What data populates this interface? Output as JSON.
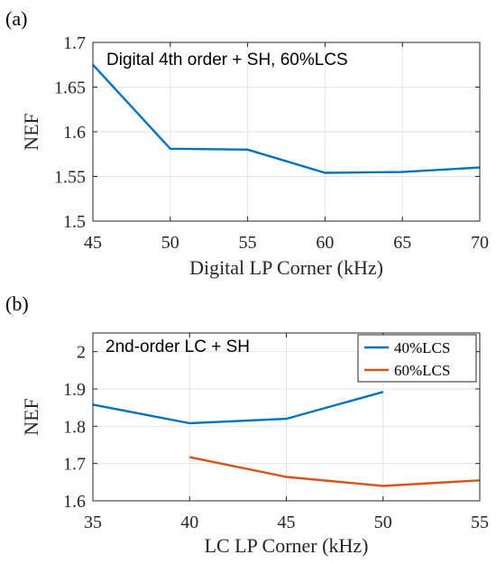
{
  "chart_data": [
    {
      "type": "line",
      "panel_label": "(a)",
      "annotation": "Digital 4th order + SH, 60%LCS",
      "xlabel": "Digital LP Corner (kHz)",
      "ylabel": "NEF",
      "xlim": [
        45,
        70
      ],
      "ylim": [
        1.5,
        1.7
      ],
      "xticks": [
        45,
        50,
        55,
        60,
        65,
        70
      ],
      "yticks": [
        1.5,
        1.55,
        1.6,
        1.65,
        1.7
      ],
      "xtick_labels": [
        "45",
        "50",
        "55",
        "60",
        "65",
        "70"
      ],
      "ytick_labels": [
        "1.5",
        "1.55",
        "1.6",
        "1.65",
        "1.7"
      ],
      "grid": true,
      "series": [
        {
          "color": "#0072BD",
          "x": [
            45,
            50,
            55,
            60,
            65,
            70
          ],
          "y": [
            1.675,
            1.581,
            1.58,
            1.554,
            1.555,
            1.56
          ]
        }
      ]
    },
    {
      "type": "line",
      "panel_label": "(b)",
      "annotation": "2nd-order LC + SH",
      "xlabel": "LC LP Corner (kHz)",
      "ylabel": "NEF",
      "xlim": [
        35,
        55
      ],
      "ylim": [
        1.6,
        2.05
      ],
      "xticks": [
        35,
        40,
        45,
        50,
        55
      ],
      "yticks": [
        1.6,
        1.7,
        1.8,
        1.9,
        2.0
      ],
      "xtick_labels": [
        "35",
        "40",
        "45",
        "50",
        "55"
      ],
      "ytick_labels": [
        "1.6",
        "1.7",
        "1.8",
        "1.9",
        "2"
      ],
      "grid": true,
      "legend": "top-right",
      "series": [
        {
          "name": "40%LCS",
          "color": "#0072BD",
          "x": [
            35,
            40,
            45,
            50
          ],
          "y": [
            1.858,
            1.808,
            1.82,
            1.892
          ]
        },
        {
          "name": "60%LCS",
          "color": "#D95319",
          "x": [
            40,
            45,
            50,
            55
          ],
          "y": [
            1.717,
            1.664,
            1.64,
            1.655
          ]
        }
      ]
    }
  ]
}
